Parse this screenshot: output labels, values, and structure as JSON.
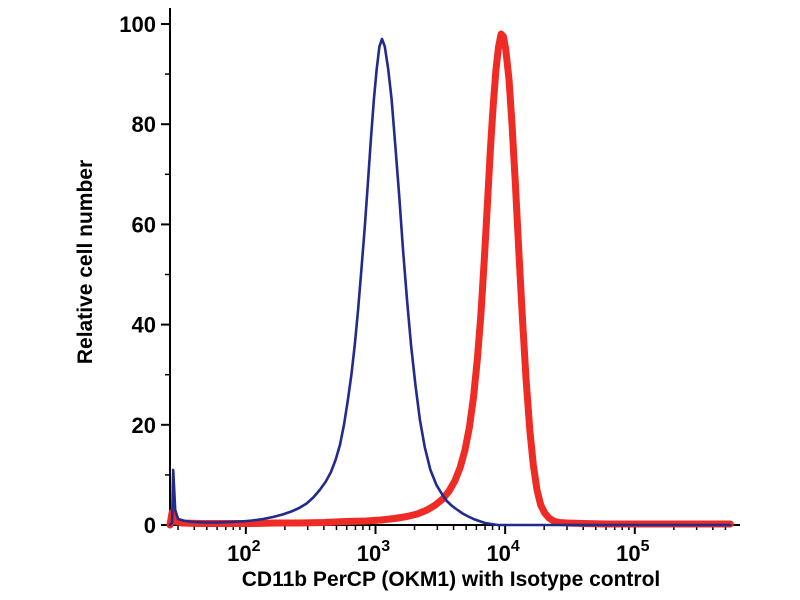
{
  "chart_data": {
    "type": "line",
    "subtype": "flow-cytometry-histogram",
    "title": "",
    "xlabel": "CD11b PerCP (OKM1) with Isotype control",
    "ylabel": "Relative cell number",
    "x_scale": "log10",
    "xlim": [
      26,
      562000
    ],
    "ylim": [
      0,
      102
    ],
    "x_tick_base": 10,
    "x_tick_exponents": [
      2,
      3,
      4,
      5
    ],
    "y_ticks": [
      0,
      20,
      40,
      60,
      80,
      100
    ],
    "y_minor_step": 10,
    "grid": false,
    "legend": "none",
    "axis_color": "#000000",
    "background": "#ffffff",
    "series": [
      {
        "name": "CD11b PerCP (OKM1)",
        "slug": "cd11b-percp",
        "color": "#ee2b24",
        "stroke_width": 7,
        "points": [
          [
            26,
            0
          ],
          [
            27,
            2.5
          ],
          [
            28,
            0.8
          ],
          [
            32,
            0.4
          ],
          [
            45,
            0.3
          ],
          [
            70,
            0.3
          ],
          [
            110,
            0.3
          ],
          [
            170,
            0.4
          ],
          [
            260,
            0.4
          ],
          [
            400,
            0.5
          ],
          [
            600,
            0.7
          ],
          [
            850,
            0.8
          ],
          [
            1100,
            1
          ],
          [
            1400,
            1.3
          ],
          [
            1750,
            1.7
          ],
          [
            2100,
            2.2
          ],
          [
            2500,
            3
          ],
          [
            2900,
            4
          ],
          [
            3300,
            5.2
          ],
          [
            3700,
            6.8
          ],
          [
            4100,
            8.8
          ],
          [
            4500,
            11.5
          ],
          [
            4900,
            15
          ],
          [
            5300,
            19.5
          ],
          [
            5700,
            25.5
          ],
          [
            6100,
            33
          ],
          [
            6500,
            42
          ],
          [
            6900,
            53
          ],
          [
            7300,
            64
          ],
          [
            7700,
            75
          ],
          [
            8100,
            84
          ],
          [
            8500,
            91
          ],
          [
            8900,
            95.5
          ],
          [
            9300,
            98
          ],
          [
            9700,
            97.5
          ],
          [
            10100,
            95
          ],
          [
            10700,
            89
          ],
          [
            11300,
            80
          ],
          [
            12000,
            68
          ],
          [
            12800,
            54
          ],
          [
            13600,
            41
          ],
          [
            14500,
            29
          ],
          [
            15500,
            19
          ],
          [
            16500,
            12
          ],
          [
            17600,
            7
          ],
          [
            18800,
            4
          ],
          [
            20200,
            2.4
          ],
          [
            21800,
            1.4
          ],
          [
            23600,
            0.8
          ],
          [
            26000,
            0.5
          ],
          [
            30000,
            0.4
          ],
          [
            40000,
            0.3
          ],
          [
            60000,
            0.2
          ],
          [
            100000,
            0.2
          ],
          [
            220000,
            0.2
          ],
          [
            545000,
            0.2
          ]
        ]
      },
      {
        "name": "Isotype control",
        "slug": "isotype-control",
        "color": "#212a8d",
        "stroke_width": 2.6,
        "points": [
          [
            26,
            0
          ],
          [
            27,
            0.5
          ],
          [
            27.5,
            11
          ],
          [
            28.5,
            3
          ],
          [
            30,
            1.2
          ],
          [
            34,
            0.8
          ],
          [
            40,
            0.6
          ],
          [
            50,
            0.5
          ],
          [
            62,
            0.5
          ],
          [
            76,
            0.6
          ],
          [
            92,
            0.7
          ],
          [
            112,
            0.9
          ],
          [
            136,
            1.2
          ],
          [
            162,
            1.6
          ],
          [
            192,
            2.1
          ],
          [
            224,
            2.7
          ],
          [
            258,
            3.4
          ],
          [
            294,
            4.3
          ],
          [
            332,
            5.5
          ],
          [
            372,
            7
          ],
          [
            412,
            8.6
          ],
          [
            452,
            10.5
          ],
          [
            492,
            13
          ],
          [
            532,
            16
          ],
          [
            572,
            20
          ],
          [
            612,
            25
          ],
          [
            652,
            30
          ],
          [
            692,
            36
          ],
          [
            734,
            43
          ],
          [
            778,
            51
          ],
          [
            824,
            59
          ],
          [
            872,
            68
          ],
          [
            922,
            77
          ],
          [
            972,
            85
          ],
          [
            1022,
            91
          ],
          [
            1072,
            95.5
          ],
          [
            1122,
            97
          ],
          [
            1180,
            95.5
          ],
          [
            1252,
            91
          ],
          [
            1330,
            85
          ],
          [
            1420,
            76
          ],
          [
            1520,
            66
          ],
          [
            1630,
            55
          ],
          [
            1750,
            45
          ],
          [
            1880,
            36
          ],
          [
            2030,
            28
          ],
          [
            2200,
            21
          ],
          [
            2400,
            15.5
          ],
          [
            2650,
            11
          ],
          [
            2950,
            8
          ],
          [
            3250,
            6.2
          ],
          [
            3550,
            4.8
          ],
          [
            3900,
            3.8
          ],
          [
            4300,
            3
          ],
          [
            4700,
            2.3
          ],
          [
            5200,
            1.7
          ],
          [
            5700,
            1.2
          ],
          [
            6300,
            0.8
          ],
          [
            7000,
            0.4
          ],
          [
            7800,
            0.2
          ],
          [
            8800,
            0
          ],
          [
            12000,
            0
          ],
          [
            30000,
            0
          ],
          [
            120000,
            0
          ],
          [
            545000,
            0
          ]
        ]
      }
    ]
  }
}
